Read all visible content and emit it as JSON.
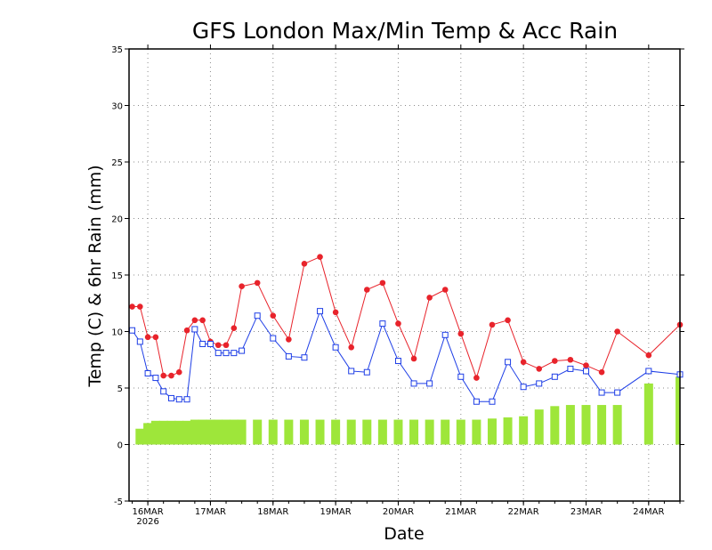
{
  "chart_data": {
    "type": "line",
    "title": "GFS London Max/Min Temp & Acc Rain",
    "xlabel": "Date",
    "ylabel": "Temp (C) & 6hr Rain (mm)",
    "ylim": [
      -5,
      35
    ],
    "yticks": [
      -5,
      0,
      5,
      10,
      15,
      20,
      25,
      30,
      35
    ],
    "xlim": [
      15.7,
      24.5
    ],
    "xticks": [
      {
        "pos": 16.0,
        "label": "16MAR",
        "sublabel": "2026"
      },
      {
        "pos": 17.0,
        "label": "17MAR"
      },
      {
        "pos": 18.0,
        "label": "18MAR"
      },
      {
        "pos": 19.0,
        "label": "19MAR"
      },
      {
        "pos": 20.0,
        "label": "20MAR"
      },
      {
        "pos": 21.0,
        "label": "21MAR"
      },
      {
        "pos": 22.0,
        "label": "22MAR"
      },
      {
        "pos": 23.0,
        "label": "23MAR"
      },
      {
        "pos": 24.0,
        "label": "24MAR"
      }
    ],
    "grid": true,
    "colors": {
      "max": "#e8232b",
      "min": "#1e3ee6",
      "rain": "#9ee63a"
    },
    "series": [
      {
        "name": "Max Temp",
        "style": "red line with filled circles",
        "x": [
          15.75,
          15.875,
          16.0,
          16.125,
          16.25,
          16.375,
          16.5,
          16.625,
          16.75,
          16.875,
          17.0,
          17.125,
          17.25,
          17.375,
          17.5,
          17.75,
          18.0,
          18.25,
          18.5,
          18.75,
          19.0,
          19.25,
          19.5,
          19.75,
          20.0,
          20.25,
          20.5,
          20.75,
          21.0,
          21.25,
          21.5,
          21.75,
          22.0,
          22.25,
          22.5,
          22.75,
          23.0,
          23.25,
          23.5,
          24.0,
          24.5
        ],
        "values": [
          12.2,
          12.2,
          9.5,
          9.5,
          6.1,
          6.1,
          6.4,
          10.1,
          11.0,
          11.0,
          9.1,
          8.8,
          8.8,
          10.3,
          14.0,
          14.3,
          11.4,
          9.3,
          16.0,
          16.6,
          11.7,
          8.6,
          13.7,
          14.3,
          10.7,
          7.6,
          13.0,
          13.7,
          9.8,
          5.9,
          10.6,
          11.0,
          7.3,
          6.7,
          7.4,
          7.5,
          7.0,
          6.4,
          10.0,
          7.9,
          10.6
        ]
      },
      {
        "name": "Min Temp",
        "style": "blue line with open squares",
        "x": [
          15.75,
          15.875,
          16.0,
          16.125,
          16.25,
          16.375,
          16.5,
          16.625,
          16.75,
          16.875,
          17.0,
          17.125,
          17.25,
          17.375,
          17.5,
          17.75,
          18.0,
          18.25,
          18.5,
          18.75,
          19.0,
          19.25,
          19.5,
          19.75,
          20.0,
          20.25,
          20.5,
          20.75,
          21.0,
          21.25,
          21.5,
          21.75,
          22.0,
          22.25,
          22.5,
          22.75,
          23.0,
          23.25,
          23.5,
          24.0,
          24.5
        ],
        "values": [
          10.1,
          9.1,
          6.3,
          5.9,
          4.7,
          4.1,
          4.0,
          4.0,
          10.2,
          8.9,
          8.9,
          8.1,
          8.1,
          8.1,
          8.3,
          11.4,
          9.4,
          7.8,
          7.7,
          11.8,
          8.6,
          6.5,
          6.4,
          10.7,
          7.4,
          5.4,
          5.4,
          9.7,
          6.0,
          3.8,
          3.8,
          7.3,
          5.1,
          5.4,
          6.0,
          6.7,
          6.5,
          4.6,
          4.6,
          6.5,
          6.2
        ]
      },
      {
        "name": "Acc Rain",
        "style": "green bars",
        "x": [
          15.875,
          16.0,
          16.125,
          16.25,
          16.375,
          16.5,
          16.625,
          16.75,
          16.875,
          17.0,
          17.125,
          17.25,
          17.375,
          17.5,
          17.75,
          18.0,
          18.25,
          18.5,
          18.75,
          19.0,
          19.25,
          19.5,
          19.75,
          20.0,
          20.25,
          20.5,
          20.75,
          21.0,
          21.25,
          21.5,
          21.75,
          22.0,
          22.25,
          22.5,
          22.75,
          23.0,
          23.25,
          23.5,
          24.0,
          24.5
        ],
        "values": [
          1.4,
          1.9,
          2.1,
          2.1,
          2.1,
          2.1,
          2.1,
          2.2,
          2.2,
          2.2,
          2.2,
          2.2,
          2.2,
          2.2,
          2.2,
          2.2,
          2.2,
          2.2,
          2.2,
          2.2,
          2.2,
          2.2,
          2.2,
          2.2,
          2.2,
          2.2,
          2.2,
          2.2,
          2.2,
          2.3,
          2.4,
          2.5,
          3.1,
          3.4,
          3.5,
          3.5,
          3.5,
          3.5,
          5.4,
          6.0
        ]
      }
    ]
  }
}
